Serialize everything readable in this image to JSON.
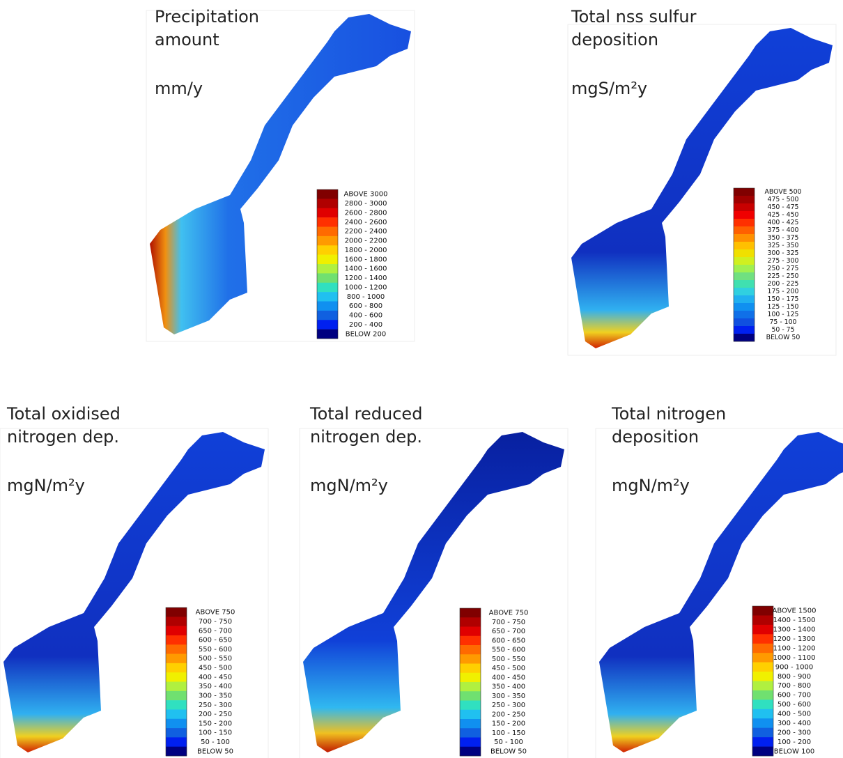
{
  "panels": [
    {
      "title": [
        "Precipitation",
        "amount"
      ],
      "unit": "mm/y",
      "legend": {
        "labels": [
          "ABOVE 3000",
          "2800 - 3000",
          "2600 - 2800",
          "2400 - 2600",
          "2200 - 2400",
          "2000 - 2200",
          "1800 - 2000",
          "1600 - 1800",
          "1400 - 1600",
          "1200 - 1400",
          "1000 - 1200",
          "800 - 1000",
          "600 - 800",
          "400 - 600",
          "200 - 400",
          "BELOW 200"
        ],
        "colors": [
          "#800000",
          "#b00000",
          "#e00000",
          "#ff3000",
          "#ff6a00",
          "#ff9a00",
          "#ffd000",
          "#f0f000",
          "#b0f040",
          "#70e070",
          "#30e0c0",
          "#20c0f0",
          "#1090f0",
          "#1060e0",
          "#0020f0",
          "#000080"
        ]
      }
    },
    {
      "title": [
        "Total nss sulfur",
        "deposition"
      ],
      "unit": "mgS/m²y",
      "legend": {
        "labels": [
          "ABOVE 500",
          "475 - 500",
          "450 - 475",
          "425 - 450",
          "400 - 425",
          "375 - 400",
          "350 - 375",
          "325 - 350",
          "300 - 325",
          "275 - 300",
          "250 - 275",
          "225 - 250",
          "200 - 225",
          "175 - 200",
          "150 - 175",
          "125 - 150",
          "100 - 125",
          "75 - 100",
          "50 - 75",
          "BELOW 50"
        ],
        "colors": [
          "#800000",
          "#a00000",
          "#c80000",
          "#f00000",
          "#ff3000",
          "#ff6000",
          "#ff9000",
          "#ffc000",
          "#f0e000",
          "#d0f020",
          "#a0f050",
          "#70e080",
          "#40e0b0",
          "#30d0e0",
          "#20b0f0",
          "#1090f0",
          "#1070e8",
          "#1050e0",
          "#0020f0",
          "#000080"
        ]
      }
    },
    {
      "title": [
        "Total oxidised",
        "nitrogen dep."
      ],
      "unit": "mgN/m²y",
      "legend": {
        "labels": [
          "ABOVE 750",
          "700 - 750",
          "650 - 700",
          "600 - 650",
          "550 - 600",
          "500 - 550",
          "450 - 500",
          "400 - 450",
          "350 - 400",
          "300 - 350",
          "250 - 300",
          "200 - 250",
          "150 - 200",
          "100 - 150",
          "50 - 100",
          "BELOW 50"
        ],
        "colors": [
          "#800000",
          "#b00000",
          "#e00000",
          "#ff3000",
          "#ff6a00",
          "#ff9a00",
          "#ffd000",
          "#f0f000",
          "#b0f040",
          "#70e070",
          "#30e0c0",
          "#20c0f0",
          "#1090f0",
          "#1060e0",
          "#0020f0",
          "#000080"
        ]
      }
    },
    {
      "title": [
        "Total reduced",
        "nitrogen dep."
      ],
      "unit": "mgN/m²y",
      "legend": {
        "labels": [
          "ABOVE 750",
          "700 - 750",
          "650 - 700",
          "600 - 650",
          "550 - 600",
          "500 - 550",
          "450 - 500",
          "400 - 450",
          "350 - 400",
          "300 - 350",
          "250 - 300",
          "200 - 250",
          "150 - 200",
          "100 - 150",
          "50 - 100",
          "BELOW 50"
        ],
        "colors": [
          "#800000",
          "#b00000",
          "#e00000",
          "#ff3000",
          "#ff6a00",
          "#ff9a00",
          "#ffd000",
          "#f0f000",
          "#b0f040",
          "#70e070",
          "#30e0c0",
          "#20c0f0",
          "#1090f0",
          "#1060e0",
          "#0020f0",
          "#000080"
        ]
      }
    },
    {
      "title": [
        "Total nitrogen",
        "deposition"
      ],
      "unit": "mgN/m²y",
      "legend": {
        "labels": [
          "ABOVE 1500",
          "1400 - 1500",
          "1300 - 1400",
          "1200 - 1300",
          "1100 - 1200",
          "1000 - 1100",
          "900 - 1000",
          "800 - 900",
          "700 - 800",
          "600 - 700",
          "500 - 600",
          "400 - 500",
          "300 - 400",
          "200 - 300",
          "100 - 200",
          "BELOW 100"
        ],
        "colors": [
          "#800000",
          "#b00000",
          "#e00000",
          "#ff3000",
          "#ff6a00",
          "#ff9a00",
          "#ffd000",
          "#f0f000",
          "#b0f040",
          "#70e070",
          "#30e0c0",
          "#20c0f0",
          "#1090f0",
          "#1060e0",
          "#0020f0",
          "#000080"
        ]
      }
    }
  ]
}
